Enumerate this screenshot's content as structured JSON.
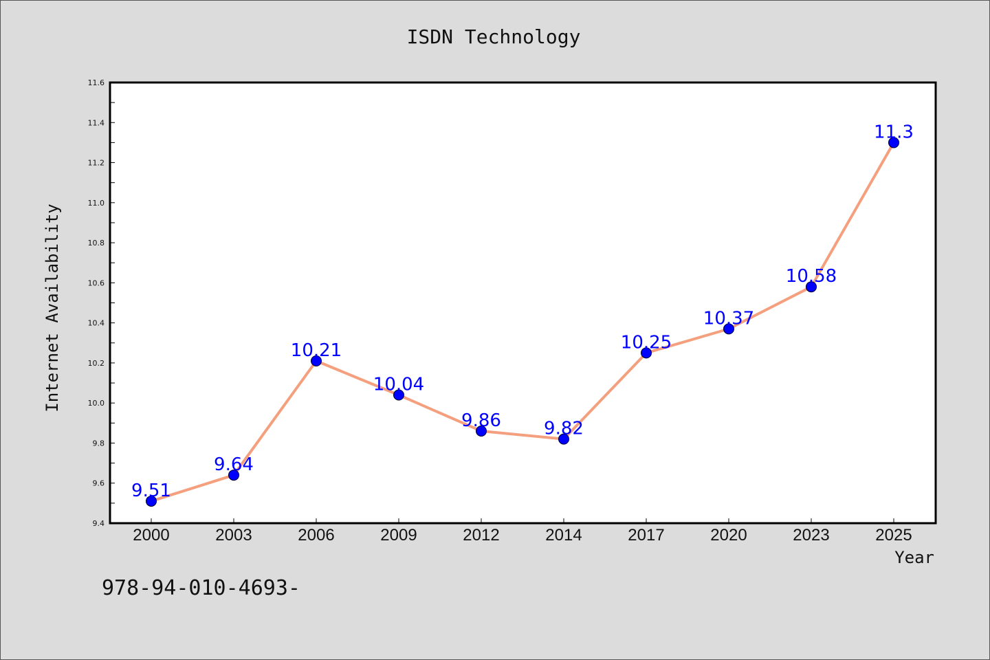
{
  "colors": {
    "background": "#dcdcdc",
    "plot_background": "#ffffff",
    "line": "#f4a07e",
    "marker": "#0000ff",
    "data_label": "#0000ff"
  },
  "footer": "978-94-010-4693-",
  "chart_data": {
    "type": "line",
    "title": "ISDN Technology",
    "xlabel": "Year",
    "ylabel": "Internet Availability",
    "categories": [
      "2000",
      "2003",
      "2006",
      "2009",
      "2012",
      "2014",
      "2017",
      "2020",
      "2023",
      "2025"
    ],
    "series": [
      {
        "values": [
          9.51,
          9.64,
          10.21,
          10.04,
          9.86,
          9.82,
          10.25,
          10.37,
          10.58,
          11.3
        ],
        "data_labels": [
          "9.51",
          "9.64",
          "10.21",
          "10.04",
          "9.86",
          "9.82",
          "10.25",
          "10.37",
          "10.58",
          "11.3"
        ]
      }
    ],
    "ylim": [
      9.4,
      11.6
    ],
    "yticks": [
      "9.4",
      "9.6",
      "9.8",
      "10.0",
      "10.2",
      "10.4",
      "10.6",
      "10.8",
      "11.0",
      "11.2",
      "11.4",
      "11.6"
    ],
    "grid": false,
    "legend": "none"
  }
}
